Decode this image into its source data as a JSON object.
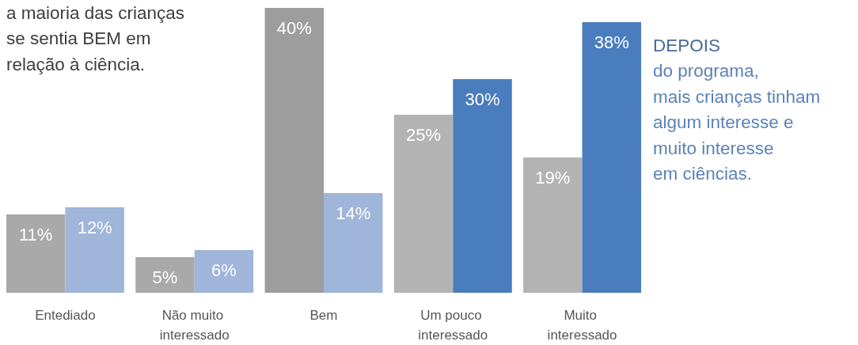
{
  "chart_data": {
    "type": "bar",
    "categories": [
      "Entediado",
      "Não muito interessado",
      "Bem",
      "Um pouco interessado",
      "Muito interessado"
    ],
    "series": [
      {
        "colors": [
          "#a9a9a9",
          "#a9a9a9",
          "#9d9d9d",
          "#b3b3b3",
          "#b3b3b3"
        ],
        "values": [
          11,
          5,
          40,
          25,
          19
        ],
        "value_labels": [
          "11%",
          "5%",
          "40%",
          "25%",
          "19%"
        ]
      },
      {
        "colors": [
          "#9fb5d9",
          "#9fb5d9",
          "#9fb5d9",
          "#4a7dbd",
          "#4a7dbd"
        ],
        "values": [
          12,
          6,
          14,
          30,
          38
        ],
        "value_labels": [
          "12%",
          "6%",
          "14%",
          "30%",
          "38%"
        ]
      }
    ],
    "annotations": [
      "a maioria das crianças\nse sentia BEM em\nrelação à ciência.",
      "DEPOIS\ndo programa,\nmais crianças tinham\nalgum interesse e\nmuito interesse\nem ciências."
    ]
  }
}
